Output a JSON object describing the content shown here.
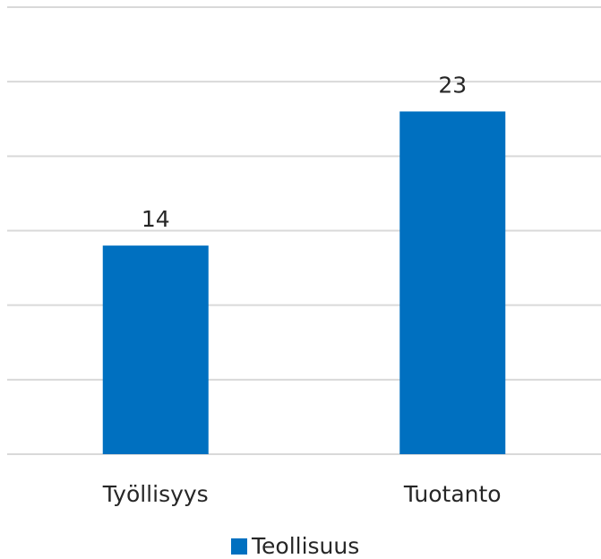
{
  "chart_data": {
    "type": "bar",
    "categories": [
      "Työllisyys",
      "Tuotanto"
    ],
    "series": [
      {
        "name": "Teollisuus",
        "color": "#0070c0",
        "values": [
          14,
          23
        ]
      }
    ],
    "ylim": [
      0,
      30
    ],
    "yticks": [
      0,
      5,
      10,
      15,
      20,
      25,
      30
    ],
    "grid": true,
    "legend": "bottom"
  }
}
